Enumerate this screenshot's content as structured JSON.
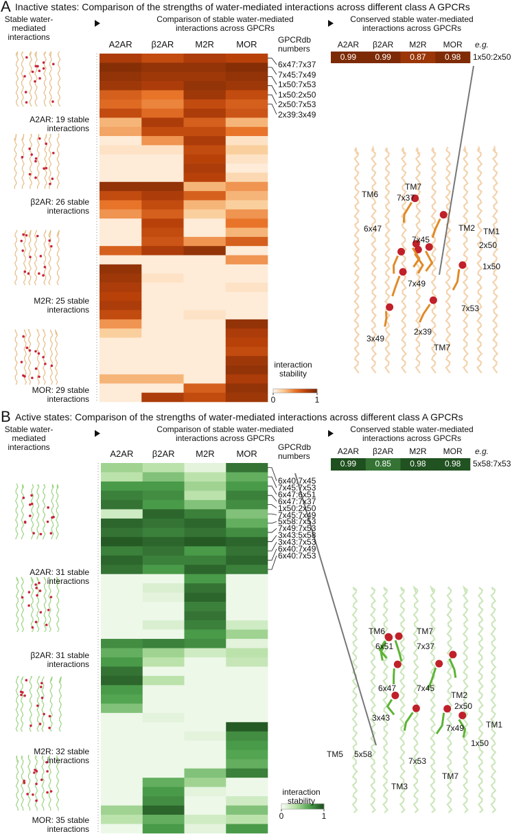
{
  "panels": [
    {
      "letter": "A",
      "title": "Inactive states: Comparison of the strengths of water-mediated interactions across different class A GPCRs",
      "left_title": "Stable water-mediated interactions",
      "structures": [
        "A2AR: 19 stable interactions",
        "β2AR: 26 stable interactions",
        "M2R: 25 stable interactions",
        "MOR: 29 stable interactions"
      ],
      "heatmap": {
        "title": "Comparison of stable water-mediated interactions across GPCRs",
        "columns": [
          "A2AR",
          "β2AR",
          "M2R",
          "MOR"
        ],
        "rows_title": "GPCRdb numbers",
        "row_labels": [
          "6x47:7x37",
          "7x45:7x49",
          "1x50:7x53",
          "1x50:2x50",
          "2x50:7x53",
          "2x39:3x49",
          null,
          null,
          null,
          null,
          null,
          null,
          null,
          null,
          null,
          null,
          null,
          null,
          null,
          null,
          null,
          null,
          null,
          null,
          null,
          null,
          null,
          null,
          null,
          null,
          null,
          null,
          null,
          null,
          null,
          null,
          null,
          null
        ],
        "values": [
          [
            0.8,
            0.7,
            0.8,
            0.75
          ],
          [
            0.95,
            0.9,
            0.9,
            0.95
          ],
          [
            0.9,
            0.85,
            0.85,
            0.9
          ],
          [
            0.85,
            0.8,
            0.9,
            0.85
          ],
          [
            0.6,
            0.5,
            0.85,
            0.7
          ],
          [
            0.55,
            0.45,
            0.7,
            0.6
          ],
          [
            0.7,
            0.55,
            0.8,
            0.65
          ],
          [
            0.3,
            0.8,
            0.6,
            0.3
          ],
          [
            0.35,
            0.7,
            0.7,
            0.5
          ],
          [
            0.05,
            0.4,
            0.8,
            0.1
          ],
          [
            0.1,
            0.1,
            0.7,
            0.2
          ],
          [
            0.05,
            0.05,
            0.75,
            0.1
          ],
          [
            0.05,
            0.05,
            0.8,
            0.05
          ],
          [
            0.05,
            0.05,
            0.75,
            0.15
          ],
          [
            0.9,
            0.9,
            0.3,
            0.4
          ],
          [
            0.7,
            0.8,
            0.6,
            0.3
          ],
          [
            0.5,
            0.7,
            0.3,
            0.2
          ],
          [
            0.4,
            0.6,
            0.2,
            0.4
          ],
          [
            0.05,
            0.75,
            0.05,
            0.5
          ],
          [
            0.05,
            0.7,
            0.05,
            0.3
          ],
          [
            0.05,
            0.65,
            0.4,
            0.6
          ],
          [
            0.6,
            0.8,
            0.9,
            0.05
          ],
          [
            0.05,
            0.05,
            0.05,
            0.4
          ],
          [
            0.9,
            0.05,
            0.05,
            0.05
          ],
          [
            0.85,
            0.1,
            0.05,
            0.05
          ],
          [
            0.8,
            0.05,
            0.05,
            0.1
          ],
          [
            0.75,
            0.05,
            0.05,
            0.05
          ],
          [
            0.8,
            0.05,
            0.05,
            0.05
          ],
          [
            0.7,
            0.05,
            0.1,
            0.05
          ],
          [
            0.4,
            0.05,
            0.05,
            0.9
          ],
          [
            0.2,
            0.05,
            0.05,
            0.8
          ],
          [
            0.05,
            0.05,
            0.05,
            0.75
          ],
          [
            0.05,
            0.05,
            0.05,
            0.7
          ],
          [
            0.05,
            0.05,
            0.05,
            0.85
          ],
          [
            0.05,
            0.05,
            0.05,
            0.9
          ],
          [
            0.3,
            0.3,
            0.05,
            0.8
          ],
          [
            0.05,
            0.05,
            0.6,
            0.9
          ],
          [
            0.05,
            0.8,
            0.7,
            0.85
          ]
        ],
        "colors": [
          "#fff5eb",
          "#f9c58b",
          "#e8742a",
          "#b8410a",
          "#7a2a06"
        ],
        "colorbar": {
          "label": "interaction stability",
          "ticks": [
            0,
            1
          ]
        }
      },
      "conserved": {
        "title": "Conserved stable water-mediated interactions across GPCRs",
        "columns": [
          "A2AR",
          "β2AR",
          "M2R",
          "MOR"
        ],
        "values": [
          0.99,
          0.99,
          0.87,
          0.98
        ],
        "eg": "e.g.",
        "example": "1x50:2x50"
      },
      "structure_labels": [
        "TM6",
        "TM7",
        "7x37",
        "6x47",
        "TM2",
        "TM1",
        "7x45",
        "2x50",
        "1x50",
        "7x49",
        "7x53",
        "3x49",
        "2x39",
        "TM7"
      ]
    },
    {
      "letter": "B",
      "title": "Active states: Comparison of the strengths of water-mediated interactions across different class A GPCRs",
      "left_title": "Stable water-mediated interactions",
      "structures": [
        "A2AR: 31 stable interactions",
        "β2AR: 31 stable interactions",
        "M2R: 32 stable interactions",
        "MOR: 35 stable interactions"
      ],
      "heatmap": {
        "title": "Comparison of stable water-mediated interactions across GPCRs",
        "columns": [
          "A2AR",
          "β2AR",
          "M2R",
          "MOR"
        ],
        "rows_title": "GPCRdb numbers",
        "row_labels": [
          "6x40:7x45",
          "7x45:7x53",
          "6x47:6x51",
          "6x47:7x37",
          "1x50:2x50",
          "7x45:7x49",
          "5x58:7x53",
          "7x49:7x53",
          "3x43:5x58",
          "3x43:7x53",
          "6x40:7x49",
          "6x40:7x53",
          null,
          null,
          null,
          null,
          null,
          null,
          null,
          null,
          null,
          null,
          null,
          null,
          null,
          null,
          null,
          null,
          null,
          null,
          null,
          null,
          null,
          null,
          null,
          null,
          null,
          null,
          null,
          null
        ],
        "values": [
          [
            0.4,
            0.3,
            0.1,
            0.85
          ],
          [
            0.3,
            0.5,
            0.3,
            0.6
          ],
          [
            0.7,
            0.7,
            0.4,
            0.7
          ],
          [
            0.8,
            0.75,
            0.3,
            0.8
          ],
          [
            0.85,
            0.7,
            0.5,
            0.75
          ],
          [
            0.2,
            0.9,
            0.8,
            0.5
          ],
          [
            0.9,
            0.85,
            0.9,
            0.6
          ],
          [
            0.85,
            0.8,
            0.85,
            0.75
          ],
          [
            0.95,
            0.9,
            0.95,
            0.9
          ],
          [
            0.8,
            0.85,
            0.7,
            0.85
          ],
          [
            0.9,
            0.8,
            0.8,
            0.9
          ],
          [
            0.85,
            0.7,
            0.9,
            0.8
          ],
          [
            0.05,
            0.05,
            0.7,
            0.05
          ],
          [
            0.05,
            0.15,
            0.85,
            0.05
          ],
          [
            0.05,
            0.1,
            0.9,
            0.05
          ],
          [
            0.05,
            0.05,
            0.8,
            0.05
          ],
          [
            0.05,
            0.05,
            0.85,
            0.05
          ],
          [
            0.05,
            0.15,
            0.8,
            0.2
          ],
          [
            0.05,
            0.05,
            0.7,
            0.4
          ],
          [
            0.75,
            0.8,
            0.75,
            0.1
          ],
          [
            0.6,
            0.4,
            0.2,
            0.3
          ],
          [
            0.7,
            0.3,
            0.05,
            0.25
          ],
          [
            0.85,
            0.05,
            0.05,
            0.05
          ],
          [
            0.9,
            0.3,
            0.05,
            0.05
          ],
          [
            0.7,
            0.05,
            0.05,
            0.05
          ],
          [
            0.65,
            0.05,
            0.05,
            0.05
          ],
          [
            0.5,
            0.05,
            0.05,
            0.05
          ],
          [
            0.05,
            0.1,
            0.05,
            0.05
          ],
          [
            0.05,
            0.05,
            0.05,
            0.95
          ],
          [
            0.05,
            0.05,
            0.1,
            0.75
          ],
          [
            0.05,
            0.05,
            0.05,
            0.7
          ],
          [
            0.05,
            0.05,
            0.05,
            0.65
          ],
          [
            0.05,
            0.05,
            0.05,
            0.6
          ],
          [
            0.05,
            0.05,
            0.5,
            0.8
          ],
          [
            0.05,
            0.6,
            0.4,
            0.05
          ],
          [
            0.05,
            0.7,
            0.1,
            0.05
          ],
          [
            0.05,
            0.75,
            0.05,
            0.2
          ],
          [
            0.4,
            0.9,
            0.05,
            0.5
          ],
          [
            0.3,
            0.6,
            0.2,
            0.3
          ],
          [
            0.05,
            0.7,
            0.1,
            0.7
          ]
        ],
        "colors": [
          "#f7fcf5",
          "#b5dfa3",
          "#4ea24e",
          "#1e4d1e"
        ],
        "colorbar": {
          "label": "interaction stability",
          "ticks": [
            0,
            1
          ]
        }
      },
      "conserved": {
        "title": "Conserved stable water-mediated interactions across GPCRs",
        "columns": [
          "A2AR",
          "β2AR",
          "M2R",
          "MOR"
        ],
        "values": [
          0.99,
          0.85,
          0.98,
          0.98
        ],
        "eg": "e.g.",
        "example": "5x58:7x53"
      },
      "structure_labels": [
        "TM6",
        "TM7",
        "6x51",
        "7x37",
        "6x47",
        "7x45",
        "TM2",
        "2x50",
        "3x43",
        "TM1",
        "TM5",
        "5x58",
        "7x49",
        "1x50",
        "7x53",
        "TM7",
        "TM3"
      ]
    }
  ]
}
